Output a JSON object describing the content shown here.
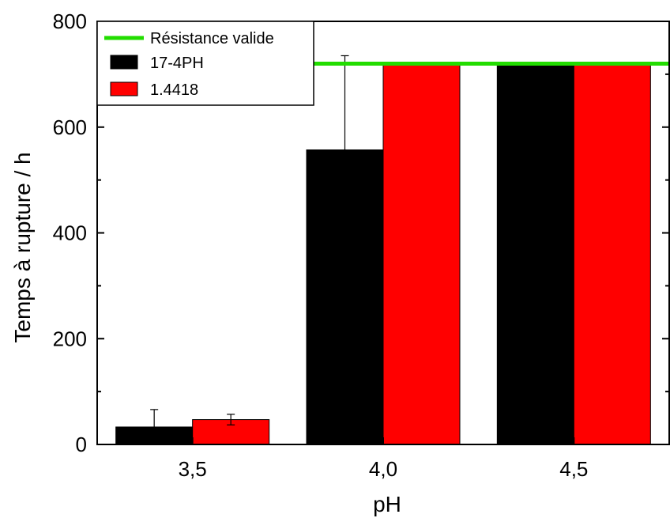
{
  "chart_data": {
    "type": "bar",
    "xlabel": "pH",
    "ylabel": "Temps à rupture / h",
    "ylim": [
      0,
      800
    ],
    "yticks": [
      "0",
      "200",
      "400",
      "600",
      "800"
    ],
    "categories": [
      "3,5",
      "4,0",
      "4,5"
    ],
    "series": [
      {
        "name": "17-4PH",
        "color": "#000000",
        "values": [
          33,
          557,
          720
        ],
        "error_upper": [
          33,
          178,
          0
        ],
        "error_lower": [
          0,
          0,
          0
        ]
      },
      {
        "name": "1.4418",
        "color": "#ff0000",
        "values": [
          47,
          720,
          720
        ],
        "error_upper": [
          10,
          0,
          0
        ],
        "error_lower": [
          10,
          0,
          0
        ]
      }
    ],
    "reference_line": {
      "name": "Résistance valide",
      "value": 720,
      "color": "#22dd00"
    },
    "legend": {
      "position": "top-left",
      "entries": [
        "Résistance valide",
        "17-4PH",
        "1.4418"
      ]
    },
    "grid": false
  }
}
